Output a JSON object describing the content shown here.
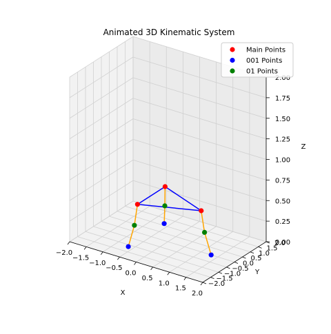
{
  "chart_data": {
    "type": "scatter",
    "projection": "3d",
    "title": "Animated 3D Kinematic System",
    "xlabel": "X",
    "ylabel": "Y",
    "zlabel": "Z",
    "xlim": [
      -2,
      2
    ],
    "ylim": [
      -2,
      2
    ],
    "zlim": [
      0,
      2
    ],
    "x_ticks": [
      "−2.0",
      "−1.5",
      "−1.0",
      "−0.5",
      "0.0",
      "0.5",
      "1.0",
      "1.5",
      "2.0"
    ],
    "y_ticks": [
      "−2.0",
      "−1.5",
      "−1.0",
      "−0.5",
      "0.0",
      "0.5",
      "1.0",
      "1.5",
      "2.0"
    ],
    "z_ticks": [
      "0.00",
      "0.25",
      "0.50",
      "0.75",
      "1.00",
      "1.25",
      "1.50",
      "1.75",
      "2.00"
    ],
    "grid": true,
    "legend_position": "top-right",
    "series": [
      {
        "name": "Main Points",
        "color": "#ff0000",
        "points": [
          [
            1.0,
            0.0,
            0.5
          ],
          [
            -0.5,
            0.87,
            0.5
          ],
          [
            -0.5,
            -0.87,
            0.5
          ]
        ]
      },
      {
        "name": "001 Points",
        "color": "#0000ff",
        "points": [
          [
            1.3,
            0.0,
            0.0
          ],
          [
            -0.65,
            1.13,
            0.0
          ],
          [
            -0.65,
            -1.13,
            0.0
          ]
        ]
      },
      {
        "name": "01 Points",
        "color": "#008000",
        "points": [
          [
            1.1,
            0.0,
            0.25
          ],
          [
            -0.55,
            0.96,
            0.25
          ],
          [
            -0.55,
            -0.96,
            0.25
          ]
        ]
      }
    ],
    "triangle_color": "#0000ff",
    "leg_color": "#ffa500"
  }
}
